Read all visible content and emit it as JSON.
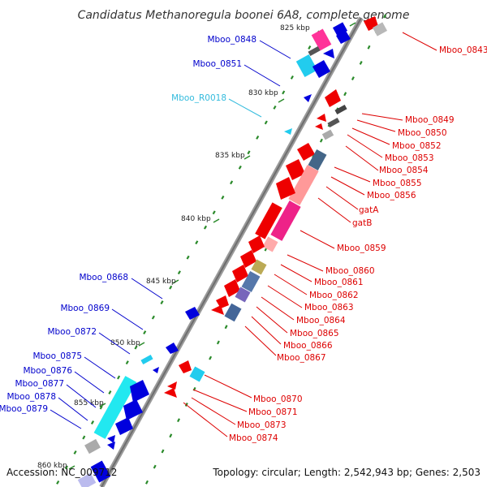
{
  "header": {
    "title": "Candidatus Methanoregula boonei 6A8, complete genome"
  },
  "footer": {
    "accession": "Accession: NC_009712",
    "summary": "Topology: circular; Length: 2,542,943 bp; Genes: 2,503"
  },
  "colors": {
    "backbone": "#8a8a8a",
    "forward_label": "#0000cc",
    "reverse_label": "#dd0000",
    "rna_label": "#33bbdd",
    "tick": "#2a8a2a"
  },
  "scale_labels": [
    "825 kbp",
    "830 kbp",
    "835 kbp",
    "840 kbp",
    "845 kbp",
    "850 kbp",
    "855 kbp",
    "860 kbp"
  ],
  "left_labels": [
    "Mboo_0848",
    "Mboo_0851",
    "Mboo_R0018",
    "Mboo_0868",
    "Mboo_0869",
    "Mboo_0872",
    "Mboo_0875",
    "Mboo_0876",
    "Mboo_0877",
    "Mboo_0878",
    "Mboo_0879"
  ],
  "right_labels": [
    "Mboo_0843",
    "Mboo_0849",
    "Mboo_0850",
    "Mboo_0852",
    "Mboo_0853",
    "Mboo_0854",
    "Mboo_0855",
    "Mboo_0856",
    "gatA",
    "gatB",
    "Mboo_0859",
    "Mboo_0860",
    "Mboo_0861",
    "Mboo_0862",
    "Mboo_0863",
    "Mboo_0864",
    "Mboo_0865",
    "Mboo_0866",
    "Mboo_0867",
    "Mboo_0870",
    "Mboo_0871",
    "Mboo_0873",
    "Mboo_0874"
  ]
}
